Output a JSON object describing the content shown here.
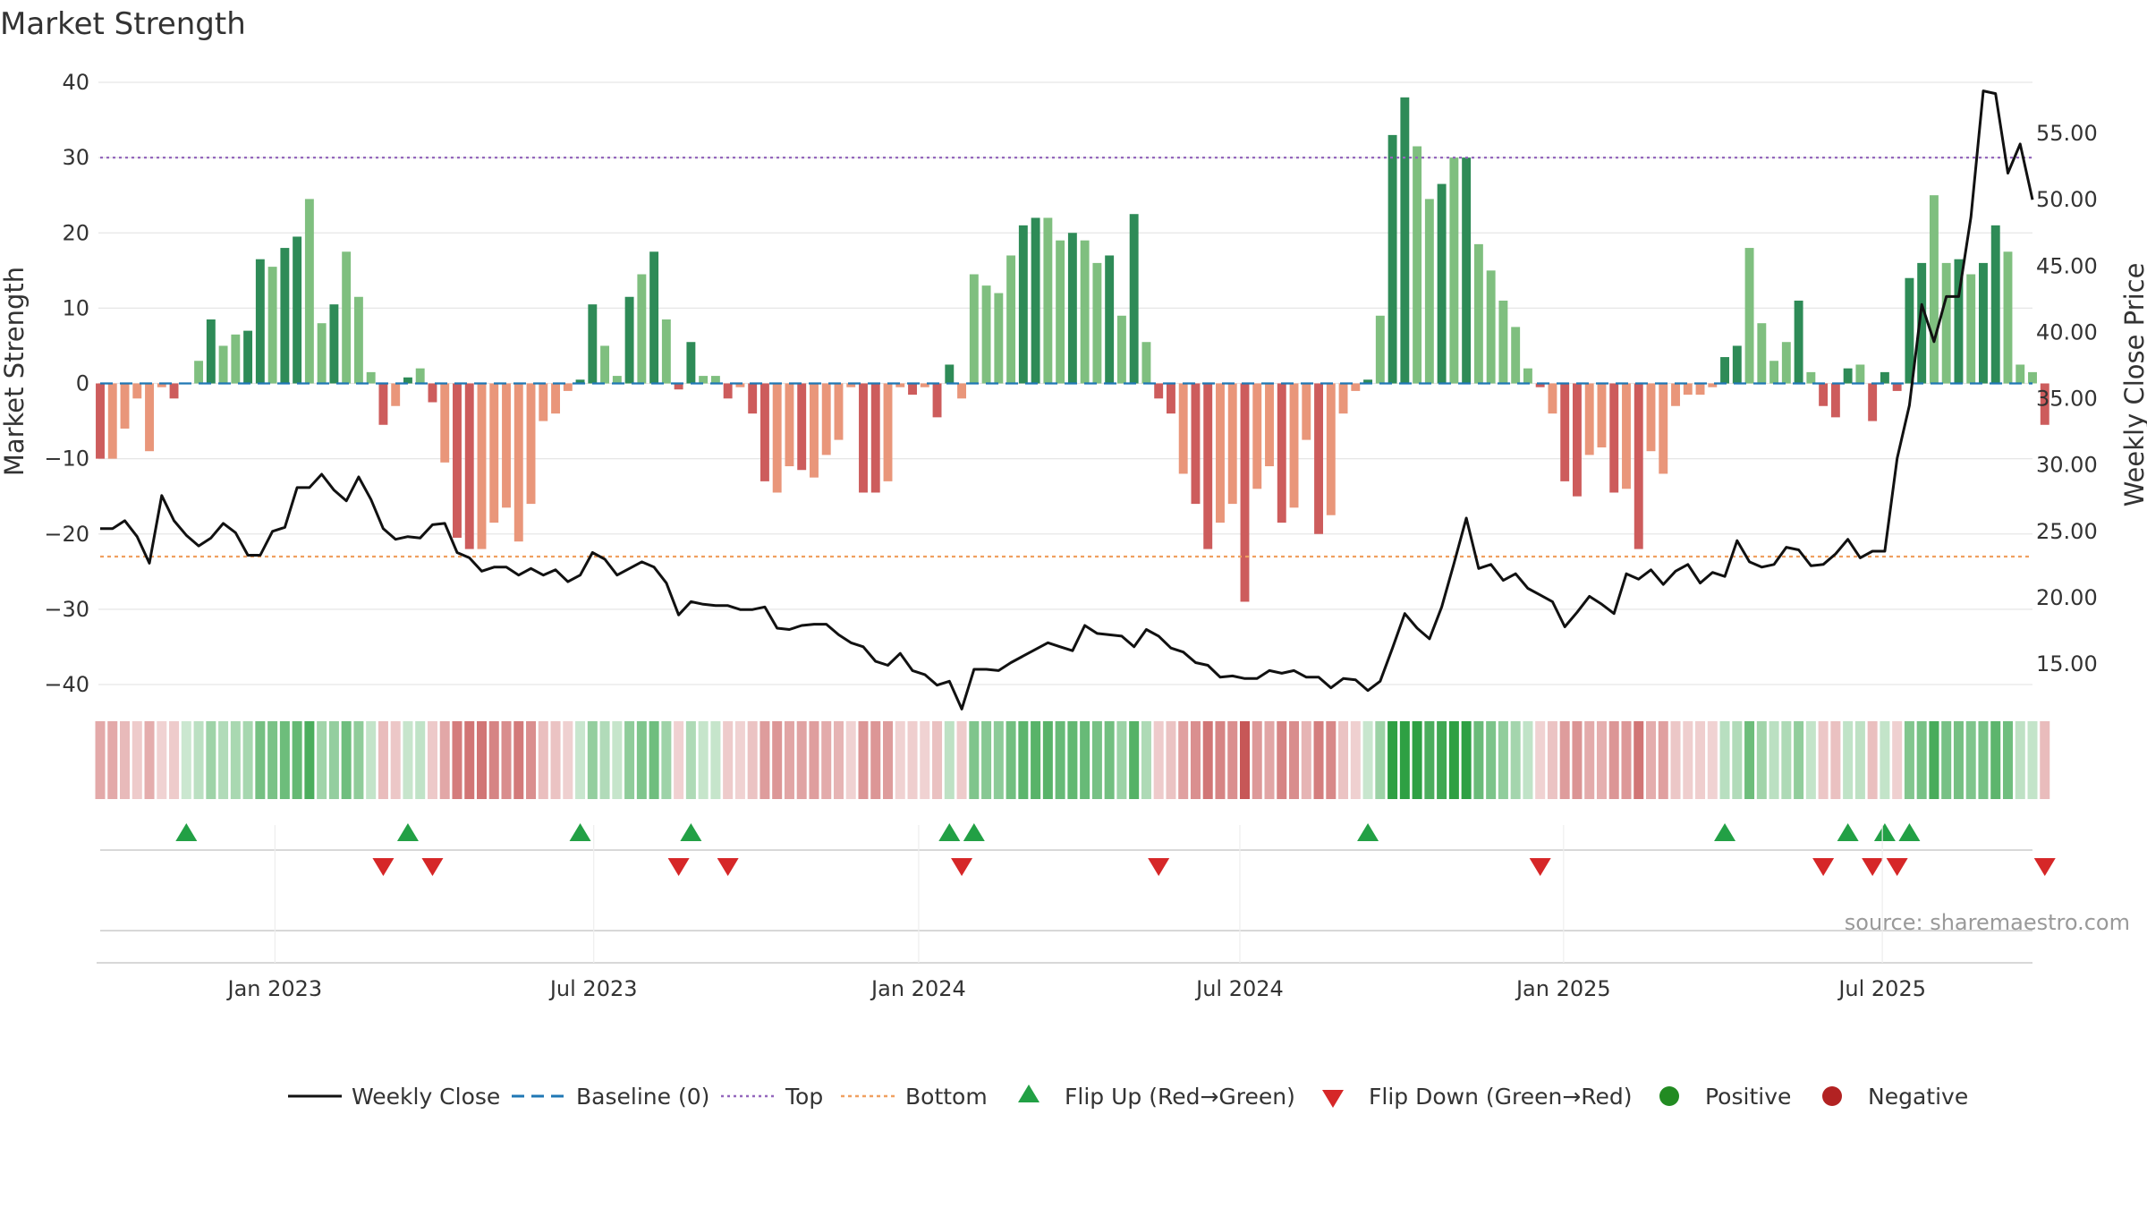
{
  "chart_data": {
    "type": "bar",
    "title": "Market Strength",
    "ylabel_left": "Market Strength",
    "ylabel_right": "Weekly Close Price",
    "ylim_left": [
      -40,
      40
    ],
    "ylim_right": [
      13.45,
      58.85
    ],
    "yticks_left": [
      40,
      30,
      20,
      10,
      0,
      -10,
      -20,
      -30,
      -40
    ],
    "yticks_left_labels": [
      "40",
      "30",
      "20",
      "10",
      "0",
      "−10",
      "−20",
      "−30",
      "−40"
    ],
    "yticks_right": [
      55,
      50,
      45,
      40,
      35,
      30,
      25,
      20,
      15
    ],
    "yticks_right_labels": [
      "55.00",
      "50.00",
      "45.00",
      "40.00",
      "35.00",
      "30.00",
      "25.00",
      "20.00",
      "15.00"
    ],
    "x_week_range": [
      0,
      157
    ],
    "x_ticks": [
      {
        "week": 14.2,
        "label": "Jan 2023"
      },
      {
        "week": 40.1,
        "label": "Jul 2023"
      },
      {
        "week": 66.5,
        "label": "Jan 2024"
      },
      {
        "week": 92.6,
        "label": "Jul 2024"
      },
      {
        "week": 118.9,
        "label": "Jan 2025"
      },
      {
        "week": 144.8,
        "label": "Jul 2025"
      }
    ],
    "reference_lines": {
      "baseline": 0,
      "top": 30,
      "bottom": -23
    },
    "strength": [
      -10,
      -10,
      -6,
      -2,
      -9,
      -0.5,
      -2,
      0,
      3,
      8.5,
      5,
      6.5,
      7,
      16.5,
      15.5,
      18,
      19.5,
      24.5,
      8,
      10.5,
      17.5,
      11.5,
      1.5,
      -5.5,
      -3,
      0.8,
      2,
      -2.5,
      -10.5,
      -20.5,
      -22,
      -22,
      -18.5,
      -16.5,
      -21,
      -16,
      -5,
      -4,
      -1,
      0.5,
      10.5,
      5,
      1,
      11.5,
      14.5,
      17.5,
      8.5,
      -0.8,
      5.5,
      1,
      1,
      -2,
      -0.5,
      -4,
      -13,
      -14.5,
      -11,
      -11.5,
      -12.5,
      -9.5,
      -7.5,
      -0.5,
      -14.5,
      -14.5,
      -13,
      -0.5,
      -1.5,
      -0.5,
      -4.5,
      2.5,
      -2,
      14.5,
      13,
      12,
      17,
      21,
      22,
      22,
      19,
      20,
      19,
      16,
      17,
      9,
      22.5,
      5.5,
      -2,
      -4,
      -12,
      -16,
      -22,
      -18.5,
      -16,
      -29,
      -14,
      -11,
      -18.5,
      -16.5,
      -7.5,
      -20,
      -17.5,
      -4,
      -1,
      0.5,
      9,
      33,
      38,
      31.5,
      24.5,
      26.5,
      30,
      30,
      18.5,
      15,
      11,
      7.5,
      2,
      -0.5,
      -4,
      -13,
      -15,
      -9.5,
      -8.5,
      -14.5,
      -14,
      -22,
      -9,
      -12,
      -3,
      -1.5,
      -1.5,
      -0.5,
      3.5,
      5,
      18,
      8,
      3,
      5.5,
      11,
      1.5,
      -3,
      -4.5,
      2,
      2.5,
      -5,
      1.5,
      -1,
      14,
      16,
      25,
      16,
      16.5,
      14.5,
      16,
      21,
      17.5,
      2.5,
      1.5,
      -5.5
    ],
    "close": [
      25.2,
      25.2,
      25.8,
      24.6,
      22.6,
      27.7,
      25.8,
      24.7,
      23.9,
      24.5,
      25.6,
      24.9,
      23.2,
      23.2,
      25,
      25.3,
      28.3,
      28.3,
      29.3,
      28.1,
      27.3,
      29.1,
      27.4,
      25.2,
      24.4,
      24.6,
      24.5,
      25.5,
      25.6,
      23.4,
      23,
      22,
      22.3,
      22.3,
      21.7,
      22.2,
      21.7,
      22.1,
      21.2,
      21.7,
      23.4,
      22.9,
      21.7,
      22.2,
      22.7,
      22.3,
      21.1,
      18.7,
      19.7,
      19.5,
      19.4,
      19.4,
      19.1,
      19.1,
      19.3,
      17.7,
      17.6,
      17.9,
      18,
      18,
      17.2,
      16.6,
      16.3,
      15.2,
      14.9,
      15.8,
      14.5,
      14.2,
      13.4,
      13.7,
      11.6,
      14.6,
      14.6,
      14.5,
      15.1,
      15.6,
      16.1,
      16.6,
      16.3,
      16,
      17.9,
      17.3,
      17.2,
      17.1,
      16.3,
      17.6,
      17.1,
      16.2,
      15.9,
      15.1,
      14.9,
      14,
      14.1,
      13.9,
      13.9,
      14.5,
      14.3,
      14.5,
      14,
      14,
      13.2,
      13.9,
      13.8,
      13,
      13.7,
      16.2,
      18.8,
      17.7,
      16.9,
      19.3,
      22.6,
      26,
      22.2,
      22.5,
      21.3,
      21.8,
      20.7,
      20.2,
      19.7,
      17.8,
      18.9,
      20.1,
      19.5,
      18.8,
      21.8,
      21.4,
      22.1,
      21,
      22,
      22.5,
      21.1,
      21.9,
      21.6,
      24.3,
      22.7,
      22.3,
      22.5,
      23.8,
      23.6,
      22.4,
      22.5,
      23.3,
      24.4,
      23,
      23.5,
      23.5,
      30.5,
      34.5,
      42.1,
      39.3,
      42.7,
      42.7,
      48.7,
      58.2,
      58,
      52,
      54.2,
      50
    ]
  },
  "legend": [
    {
      "label": "Weekly Close"
    },
    {
      "label": "Baseline (0)"
    },
    {
      "label": "Top"
    },
    {
      "label": "Bottom"
    },
    {
      "label": "Flip Up (Red→Green)"
    },
    {
      "label": "Flip Down (Green→Red)"
    },
    {
      "label": "Positive"
    },
    {
      "label": "Negative"
    }
  ],
  "source": "source: sharemaestro.com",
  "colors": {
    "pos_strong": "#2e8b57",
    "pos_light": "#7fbf7f",
    "neg_strong": "#cd5c5c",
    "neg_light": "#e9967a",
    "close_line": "#111111",
    "baseline": "#1f77b4",
    "top": "#9467bd",
    "bottom": "#f0a060",
    "flip_up": "#22a045",
    "flip_down": "#d62728",
    "positive_dot": "#228b22",
    "negative_dot": "#b22222",
    "grid": "#e6e6e6",
    "axis": "#cccccc",
    "source_text": "#999999"
  }
}
